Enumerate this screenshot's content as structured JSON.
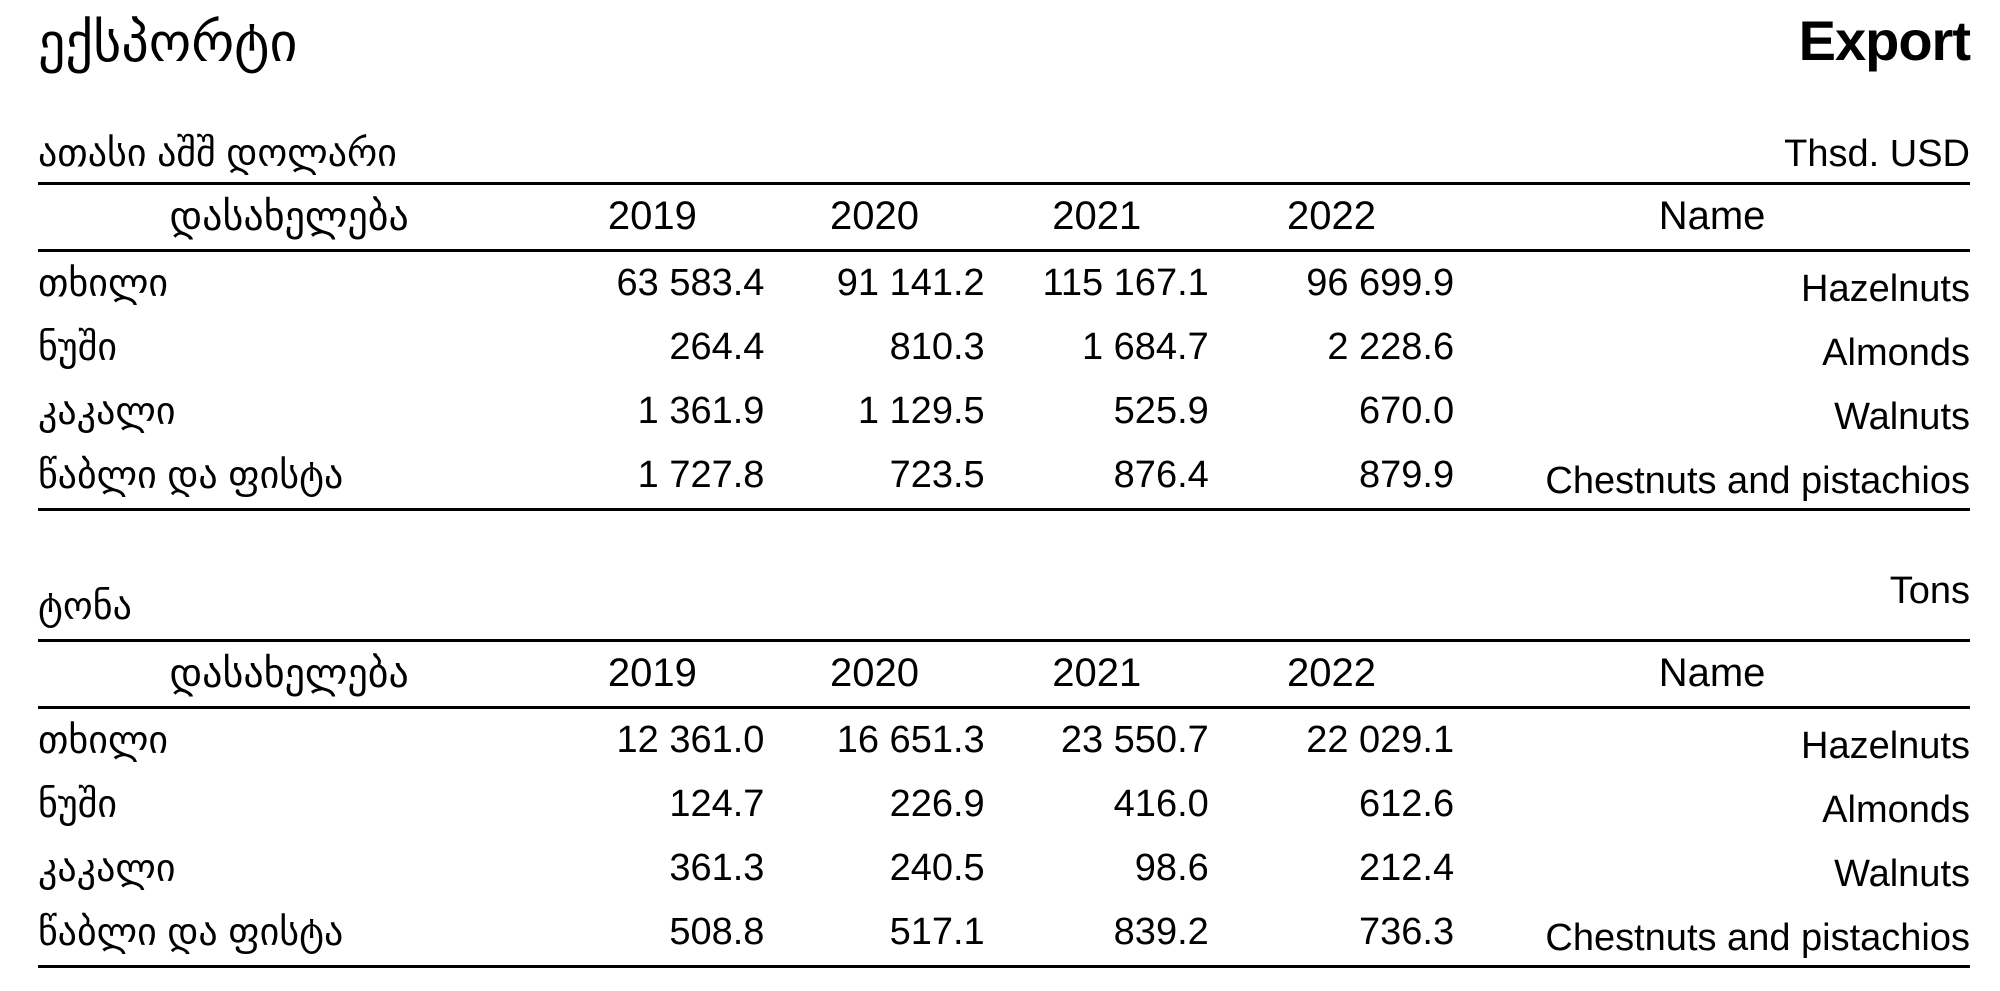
{
  "header": {
    "title_ka": "ექსპორტი",
    "title_en": "Export"
  },
  "tables": [
    {
      "unit_ka": "ათასი აშშ დოლარი",
      "unit_en": "Thsd. USD",
      "columns": {
        "name_ka": "დასახელება",
        "years": [
          "2019",
          "2020",
          "2021",
          "2022"
        ],
        "name_en": "Name"
      },
      "rows": [
        {
          "name_ka": "თხილი",
          "values": [
            "63 583.4",
            "91 141.2",
            "115 167.1",
            "96 699.9"
          ],
          "name_en": "Hazelnuts"
        },
        {
          "name_ka": "ნუში",
          "values": [
            "264.4",
            "810.3",
            "1 684.7",
            "2 228.6"
          ],
          "name_en": "Almonds"
        },
        {
          "name_ka": "კაკალი",
          "values": [
            "1 361.9",
            "1 129.5",
            "525.9",
            "670.0"
          ],
          "name_en": "Walnuts"
        },
        {
          "name_ka": "წაბლი და ფისტა",
          "values": [
            "1 727.8",
            "723.5",
            "876.4",
            "879.9"
          ],
          "name_en": "Chestnuts and pistachios"
        }
      ]
    },
    {
      "unit_ka": "ტონა",
      "unit_en": "Tons",
      "columns": {
        "name_ka": "დასახელება",
        "years": [
          "2019",
          "2020",
          "2021",
          "2022"
        ],
        "name_en": "Name"
      },
      "rows": [
        {
          "name_ka": "თხილი",
          "values": [
            "12 361.0",
            "16 651.3",
            "23 550.7",
            "22 029.1"
          ],
          "name_en": "Hazelnuts"
        },
        {
          "name_ka": "ნუში",
          "values": [
            "124.7",
            "226.9",
            "416.0",
            "612.6"
          ],
          "name_en": "Almonds"
        },
        {
          "name_ka": "კაკალი",
          "values": [
            "361.3",
            "240.5",
            "98.6",
            "212.4"
          ],
          "name_en": "Walnuts"
        },
        {
          "name_ka": "წაბლი და ფისტა",
          "values": [
            "508.8",
            "517.1",
            "839.2",
            "736.3"
          ],
          "name_en": "Chestnuts and pistachios"
        }
      ]
    }
  ]
}
